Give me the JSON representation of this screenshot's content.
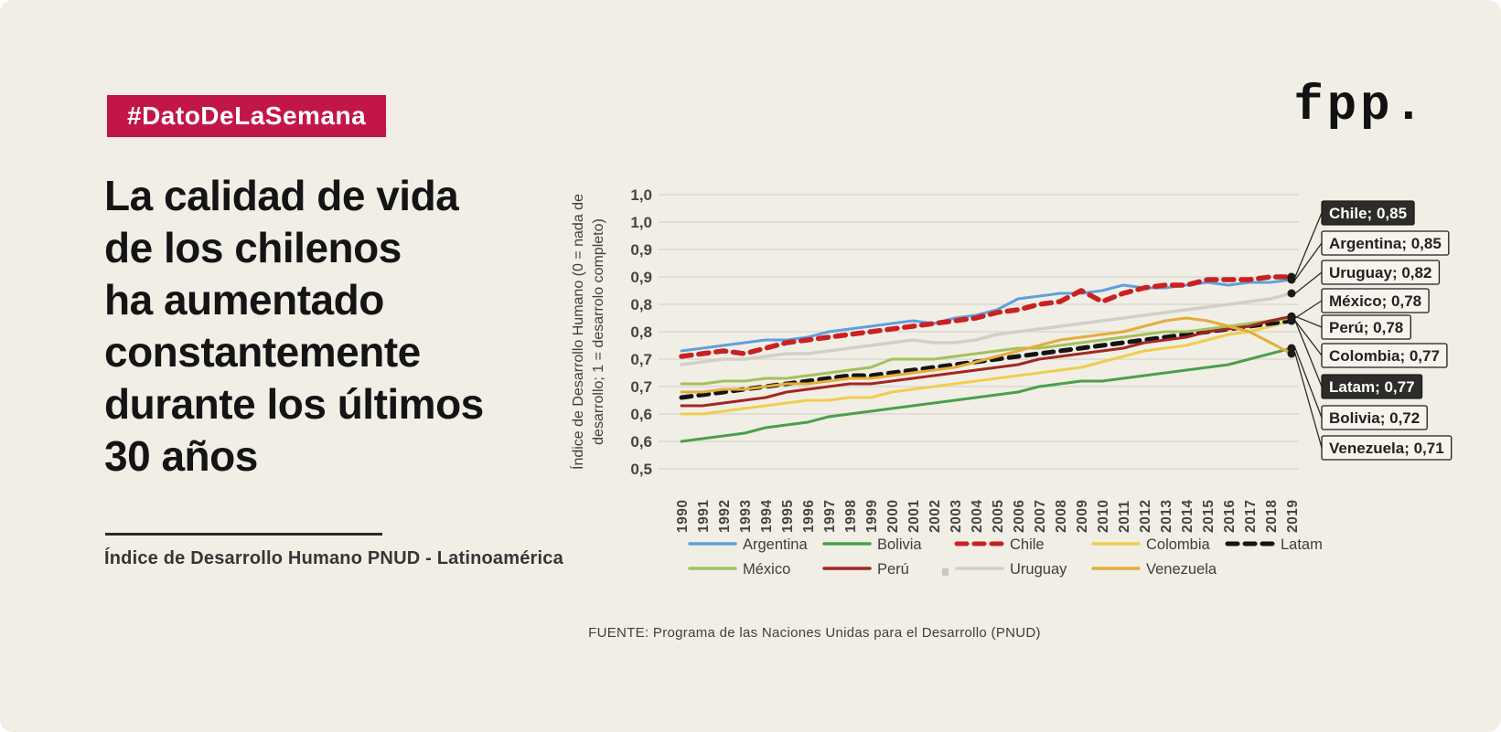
{
  "badge": {
    "label": "#DatoDeLaSemana",
    "bg": "#c31648"
  },
  "logo": {
    "text": "fpp."
  },
  "headline": {
    "text": "La calidad de vida\nde los chilenos\nha aumentado\nconstantemente\ndurante los últimos\n30 años"
  },
  "subtitle": {
    "text": "Índice de Desarrollo Humano PNUD - Latinoamérica"
  },
  "source": {
    "text": "FUENTE: Programa de las Naciones Unidas para el Desarrollo (PNUD)"
  },
  "colors": {
    "background": "#f1eee6",
    "badge": "#c31648",
    "grid": "#ddd9d0",
    "tick_text": "#454545",
    "callout_dark_fill": "#2e2c29",
    "callout_light_fill": "#f7f4ed",
    "callout_border": "#1d1d1d",
    "dot": "#1b1b1b"
  },
  "chart_data": {
    "type": "line",
    "ylabel_lines": [
      "Índice de Desarrollo Humano (0 = nada de",
      "desarrollo; 1 = desarrolo completo)"
    ],
    "x": [
      1990,
      1991,
      1992,
      1993,
      1994,
      1995,
      1996,
      1997,
      1998,
      1999,
      2000,
      2001,
      2002,
      2003,
      2004,
      2005,
      2006,
      2007,
      2008,
      2009,
      2010,
      2011,
      2012,
      2013,
      2014,
      2015,
      2016,
      2017,
      2018,
      2019
    ],
    "ylim": [
      0.5,
      1.0
    ],
    "ytick_values": [
      1.0,
      0.95,
      0.9,
      0.85,
      0.8,
      0.75,
      0.7,
      0.65,
      0.6,
      0.55,
      0.5
    ],
    "ytick_labels": [
      "1,0",
      "1,0",
      "0,9",
      "0,9",
      "0,8",
      "0,8",
      "0,7",
      "0,7",
      "0,6",
      "0,6",
      "0,5"
    ],
    "grid": true,
    "legend_position": "bottom",
    "series": [
      {
        "name": "Argentina",
        "color": "#5fa0dc",
        "dash": false,
        "width": 3,
        "values": [
          0.715,
          0.72,
          0.725,
          0.73,
          0.735,
          0.735,
          0.74,
          0.75,
          0.755,
          0.76,
          0.765,
          0.77,
          0.765,
          0.775,
          0.78,
          0.79,
          0.81,
          0.815,
          0.82,
          0.82,
          0.825,
          0.835,
          0.83,
          0.83,
          0.835,
          0.84,
          0.835,
          0.84,
          0.84,
          0.845
        ]
      },
      {
        "name": "Bolivia",
        "color": "#4aa04a",
        "dash": false,
        "width": 3,
        "values": [
          0.55,
          0.555,
          0.56,
          0.565,
          0.575,
          0.58,
          0.585,
          0.595,
          0.6,
          0.605,
          0.61,
          0.615,
          0.62,
          0.625,
          0.63,
          0.635,
          0.64,
          0.65,
          0.655,
          0.66,
          0.66,
          0.665,
          0.67,
          0.675,
          0.68,
          0.685,
          0.69,
          0.7,
          0.71,
          0.72
        ]
      },
      {
        "name": "Chile",
        "color": "#c92121",
        "dash": true,
        "width": 5.5,
        "values": [
          0.705,
          0.71,
          0.715,
          0.71,
          0.72,
          0.73,
          0.735,
          0.74,
          0.745,
          0.75,
          0.755,
          0.76,
          0.765,
          0.77,
          0.775,
          0.785,
          0.79,
          0.8,
          0.805,
          0.825,
          0.805,
          0.82,
          0.83,
          0.835,
          0.835,
          0.845,
          0.845,
          0.845,
          0.85,
          0.85
        ]
      },
      {
        "name": "Colombia",
        "color": "#f0cd51",
        "dash": false,
        "width": 3,
        "values": [
          0.6,
          0.6,
          0.605,
          0.61,
          0.615,
          0.62,
          0.625,
          0.625,
          0.63,
          0.63,
          0.64,
          0.645,
          0.65,
          0.655,
          0.66,
          0.665,
          0.67,
          0.675,
          0.68,
          0.685,
          0.695,
          0.705,
          0.715,
          0.72,
          0.725,
          0.735,
          0.745,
          0.75,
          0.76,
          0.77
        ]
      },
      {
        "name": "Latam",
        "color": "#141414",
        "dash": true,
        "width": 5,
        "values": [
          0.63,
          0.635,
          0.64,
          0.645,
          0.65,
          0.655,
          0.66,
          0.665,
          0.67,
          0.67,
          0.675,
          0.68,
          0.685,
          0.69,
          0.695,
          0.7,
          0.705,
          0.71,
          0.715,
          0.72,
          0.725,
          0.73,
          0.735,
          0.74,
          0.745,
          0.75,
          0.755,
          0.76,
          0.765,
          0.77
        ]
      },
      {
        "name": "México",
        "color": "#a5c05c",
        "dash": false,
        "width": 3,
        "values": [
          0.655,
          0.655,
          0.66,
          0.66,
          0.665,
          0.665,
          0.67,
          0.675,
          0.68,
          0.685,
          0.7,
          0.7,
          0.7,
          0.705,
          0.71,
          0.715,
          0.72,
          0.72,
          0.725,
          0.73,
          0.735,
          0.74,
          0.745,
          0.75,
          0.75,
          0.755,
          0.76,
          0.765,
          0.77,
          0.775
        ]
      },
      {
        "name": "Perú",
        "color": "#a32623",
        "dash": false,
        "width": 3,
        "values": [
          0.615,
          0.615,
          0.62,
          0.625,
          0.63,
          0.64,
          0.645,
          0.65,
          0.655,
          0.655,
          0.66,
          0.665,
          0.67,
          0.675,
          0.68,
          0.685,
          0.69,
          0.7,
          0.705,
          0.71,
          0.715,
          0.72,
          0.73,
          0.735,
          0.74,
          0.75,
          0.755,
          0.76,
          0.77,
          0.778
        ]
      },
      {
        "name": "Uruguay",
        "color": "#d2cfc9",
        "dash": false,
        "width": 3.5,
        "values": [
          0.69,
          0.695,
          0.7,
          0.7,
          0.705,
          0.71,
          0.71,
          0.715,
          0.72,
          0.725,
          0.73,
          0.735,
          0.73,
          0.73,
          0.735,
          0.745,
          0.75,
          0.755,
          0.76,
          0.765,
          0.77,
          0.775,
          0.78,
          0.785,
          0.79,
          0.795,
          0.8,
          0.805,
          0.81,
          0.82
        ]
      },
      {
        "name": "Venezuela",
        "color": "#e3ae38",
        "dash": false,
        "width": 3,
        "values": [
          0.64,
          0.64,
          0.645,
          0.645,
          0.65,
          0.655,
          0.655,
          0.66,
          0.665,
          0.665,
          0.67,
          0.675,
          0.68,
          0.685,
          0.695,
          0.705,
          0.715,
          0.725,
          0.735,
          0.74,
          0.745,
          0.75,
          0.76,
          0.77,
          0.775,
          0.77,
          0.76,
          0.75,
          0.73,
          0.71
        ]
      }
    ],
    "legend_rows": [
      [
        "Argentina",
        "Bolivia",
        "Chile",
        "Colombia",
        "Latam"
      ],
      [
        "México",
        "Perú",
        "Uruguay",
        "Venezuela"
      ]
    ],
    "callouts": [
      {
        "series": "Chile",
        "label": "Chile; 0,85",
        "dark": true
      },
      {
        "series": "Argentina",
        "label": "Argentina; 0,85",
        "dark": false
      },
      {
        "series": "Uruguay",
        "label": "Uruguay; 0,82",
        "dark": false
      },
      {
        "series": "México",
        "label": "México; 0,78",
        "dark": false
      },
      {
        "series": "Perú",
        "label": "Perú; 0,78",
        "dark": false
      },
      {
        "series": "Colombia",
        "label": "Colombia; 0,77",
        "dark": false
      },
      {
        "series": "Latam",
        "label": "Latam; 0,77",
        "dark": true
      },
      {
        "series": "Bolivia",
        "label": "Bolivia; 0,72",
        "dark": false
      },
      {
        "series": "Venezuela",
        "label": "Venezuela; 0,71",
        "dark": false
      }
    ]
  }
}
